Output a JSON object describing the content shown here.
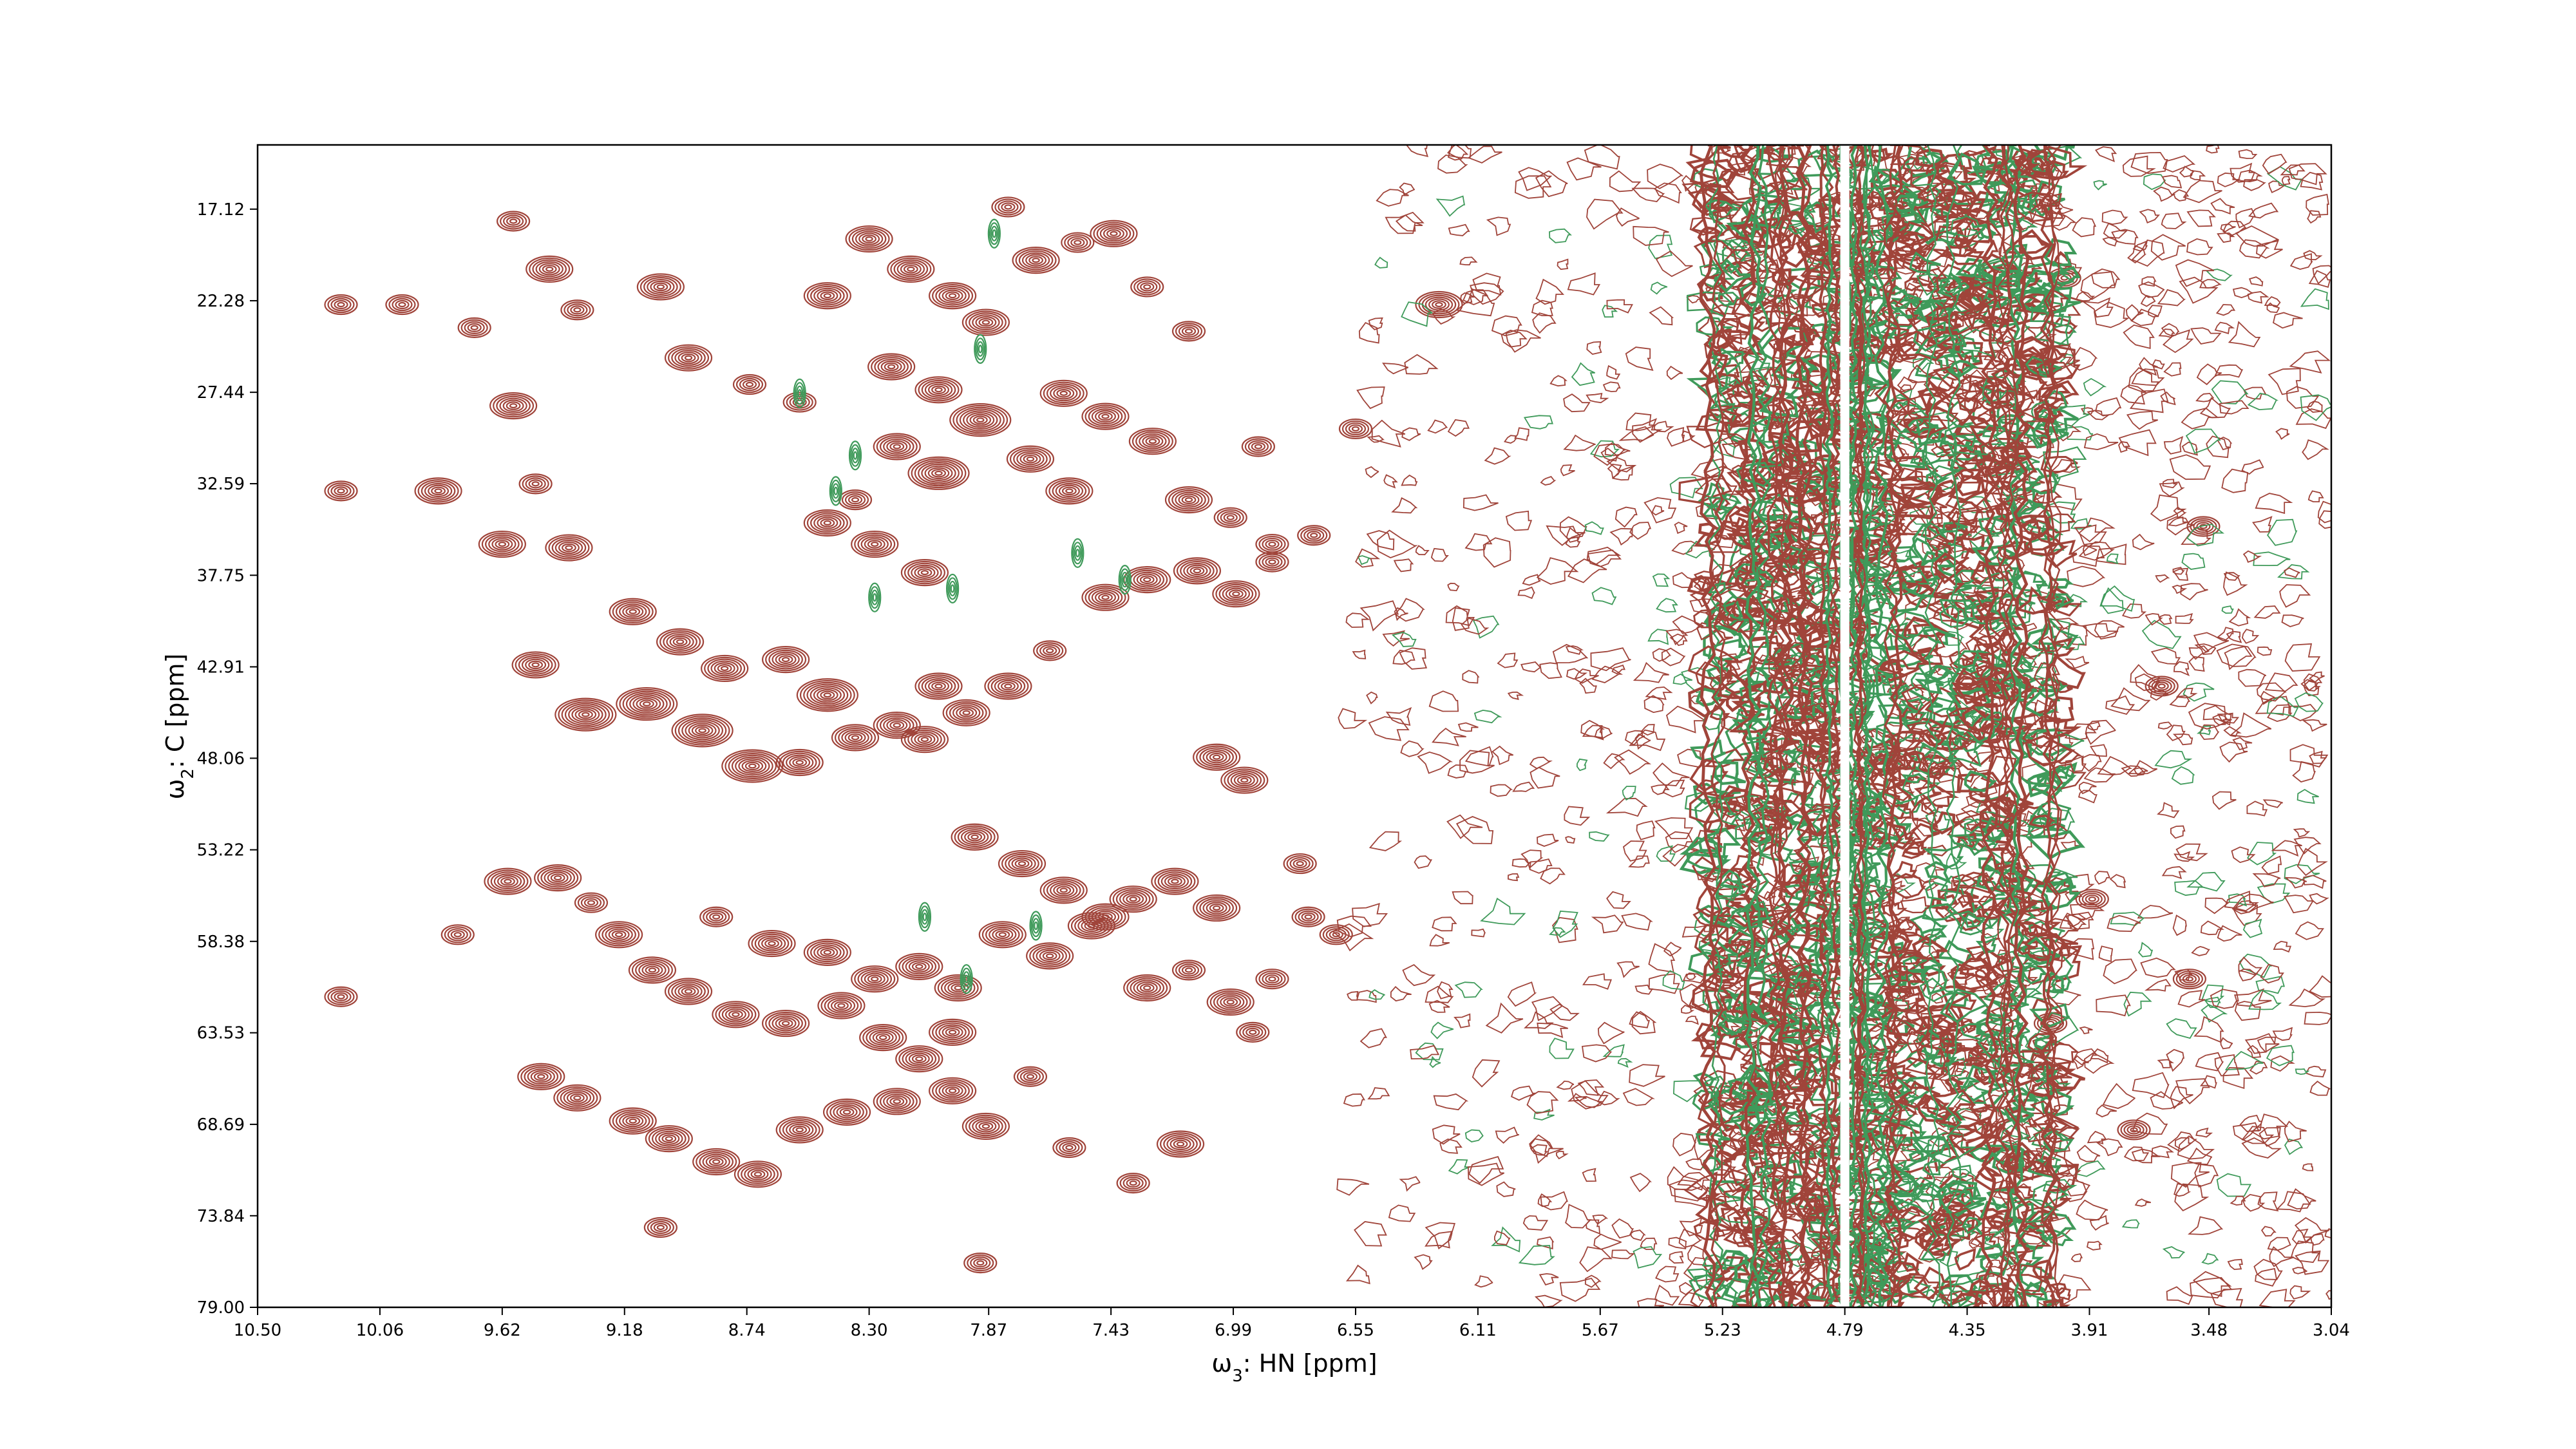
{
  "chart_data": {
    "type": "contour",
    "xlabel_sym": "ω",
    "xlabel_sub": "3",
    "xlabel_rest": ": HN [ppm]",
    "ylabel_sym": "ω",
    "ylabel_sub": "2",
    "ylabel_rest": ": C [ppm]",
    "xlim": [
      10.5,
      3.04
    ],
    "ylim": [
      13.5,
      79.0
    ],
    "x_axis_reversed": true,
    "y_axis_reversed": true,
    "x_ticks": [
      "10.50",
      "10.06",
      "9.62",
      "9.18",
      "8.74",
      "8.30",
      "7.87",
      "7.43",
      "6.99",
      "6.55",
      "6.11",
      "5.67",
      "5.23",
      "4.79",
      "4.35",
      "3.91",
      "3.48",
      "3.04"
    ],
    "y_ticks": [
      "17.12",
      "22.28",
      "27.44",
      "32.59",
      "37.75",
      "42.91",
      "48.06",
      "53.22",
      "58.38",
      "63.53",
      "68.69",
      "73.84",
      "79.00"
    ],
    "positive_color": "#a0443a",
    "negative_color": "#3f9a5a",
    "grid": false,
    "legend": "none",
    "noise_region_ppm": [
      6.6,
      3.04
    ],
    "solvent_band_ppm": [
      5.3,
      4.0
    ],
    "solvent_center_ppm": 4.79,
    "peaks": [
      [
        9.85,
        33.0,
        2
      ],
      [
        9.58,
        17.8,
        1
      ],
      [
        9.45,
        20.5,
        2
      ],
      [
        9.35,
        22.8,
        1
      ],
      [
        9.05,
        21.5,
        2
      ],
      [
        8.95,
        25.5,
        2
      ],
      [
        8.73,
        27.0,
        1
      ],
      [
        8.55,
        28.0,
        1
      ],
      [
        8.45,
        22.0,
        2
      ],
      [
        8.2,
        30.5,
        2
      ],
      [
        8.05,
        32.0,
        3
      ],
      [
        8.35,
        33.5,
        1
      ],
      [
        9.98,
        22.5,
        1
      ],
      [
        9.72,
        23.8,
        1
      ],
      [
        9.58,
        28.2,
        2
      ],
      [
        9.5,
        32.6,
        1
      ],
      [
        9.38,
        36.2,
        2
      ],
      [
        9.15,
        39.8,
        2
      ],
      [
        8.98,
        41.5,
        2
      ],
      [
        8.82,
        43.0,
        2
      ],
      [
        8.6,
        42.5,
        2
      ],
      [
        8.45,
        44.5,
        3
      ],
      [
        8.2,
        46.2,
        2
      ],
      [
        8.05,
        44.0,
        2
      ],
      [
        9.62,
        36.0,
        2
      ],
      [
        9.5,
        42.8,
        2
      ],
      [
        9.32,
        45.6,
        3
      ],
      [
        9.1,
        45.0,
        3
      ],
      [
        8.9,
        46.5,
        3
      ],
      [
        8.72,
        48.5,
        3
      ],
      [
        8.55,
        48.3,
        2
      ],
      [
        8.35,
        46.9,
        2
      ],
      [
        8.1,
        47.0,
        2
      ],
      [
        7.95,
        45.5,
        2
      ],
      [
        7.8,
        44.0,
        2
      ],
      [
        7.65,
        42.0,
        1
      ],
      [
        9.6,
        55.0,
        2
      ],
      [
        9.42,
        54.8,
        2
      ],
      [
        9.3,
        56.2,
        1
      ],
      [
        9.2,
        58.0,
        2
      ],
      [
        9.08,
        60.0,
        2
      ],
      [
        8.95,
        61.2,
        2
      ],
      [
        8.78,
        62.5,
        2
      ],
      [
        8.6,
        63.0,
        2
      ],
      [
        8.4,
        62.0,
        2
      ],
      [
        8.25,
        63.8,
        2
      ],
      [
        8.12,
        65.0,
        2
      ],
      [
        8.0,
        63.5,
        2
      ],
      [
        9.48,
        66.0,
        2
      ],
      [
        9.35,
        67.2,
        2
      ],
      [
        9.15,
        68.5,
        2
      ],
      [
        9.02,
        69.5,
        2
      ],
      [
        8.85,
        70.8,
        2
      ],
      [
        8.7,
        71.5,
        2
      ],
      [
        8.55,
        69.0,
        2
      ],
      [
        8.38,
        68.0,
        2
      ],
      [
        8.2,
        67.4,
        2
      ],
      [
        8.0,
        66.8,
        2
      ],
      [
        7.88,
        68.8,
        2
      ],
      [
        7.72,
        66.0,
        1
      ],
      [
        8.85,
        57.0,
        1
      ],
      [
        8.65,
        58.5,
        2
      ],
      [
        8.45,
        59.0,
        2
      ],
      [
        8.28,
        60.5,
        2
      ],
      [
        8.12,
        59.8,
        2
      ],
      [
        7.98,
        61.0,
        2
      ],
      [
        7.82,
        58.0,
        2
      ],
      [
        7.65,
        59.2,
        2
      ],
      [
        7.5,
        57.5,
        2
      ],
      [
        7.35,
        56.0,
        2
      ],
      [
        7.2,
        55.0,
        2
      ],
      [
        7.05,
        56.5,
        2
      ],
      [
        7.92,
        52.5,
        2
      ],
      [
        7.75,
        54.0,
        2
      ],
      [
        7.6,
        55.5,
        2
      ],
      [
        7.45,
        57.0,
        2
      ],
      [
        7.3,
        61.0,
        2
      ],
      [
        7.15,
        60.0,
        1
      ],
      [
        7.0,
        61.8,
        2
      ],
      [
        6.85,
        60.5,
        1
      ],
      [
        6.72,
        57.0,
        1
      ],
      [
        6.62,
        58.0,
        1
      ],
      [
        7.45,
        39.0,
        2
      ],
      [
        7.3,
        38.0,
        2
      ],
      [
        7.12,
        37.5,
        2
      ],
      [
        6.98,
        38.8,
        2
      ],
      [
        6.85,
        37.0,
        1
      ],
      [
        6.7,
        35.5,
        1
      ],
      [
        7.05,
        48.0,
        2
      ],
      [
        6.95,
        49.3,
        2
      ],
      [
        6.55,
        29.5,
        1
      ],
      [
        6.25,
        22.5,
        2
      ],
      [
        7.8,
        17.0,
        1
      ],
      [
        7.7,
        20.0,
        2
      ],
      [
        7.55,
        19.0,
        1
      ],
      [
        7.42,
        18.5,
        2
      ],
      [
        7.3,
        21.5,
        1
      ],
      [
        7.15,
        24.0,
        1
      ],
      [
        7.6,
        27.5,
        2
      ],
      [
        7.45,
        28.8,
        2
      ],
      [
        7.28,
        30.2,
        2
      ],
      [
        7.15,
        33.5,
        2
      ],
      [
        7.0,
        34.5,
        1
      ],
      [
        6.85,
        36.0,
        1
      ],
      [
        8.3,
        18.8,
        2
      ],
      [
        8.15,
        20.5,
        2
      ],
      [
        8.0,
        22.0,
        2
      ],
      [
        7.88,
        23.5,
        2
      ],
      [
        8.22,
        26.0,
        2
      ],
      [
        8.05,
        27.3,
        2
      ],
      [
        7.9,
        29.0,
        3
      ],
      [
        7.72,
        31.2,
        2
      ],
      [
        7.58,
        33.0,
        2
      ],
      [
        8.45,
        34.8,
        2
      ],
      [
        8.28,
        36.0,
        2
      ],
      [
        8.1,
        37.6,
        2
      ],
      [
        10.2,
        22.5,
        1
      ],
      [
        10.2,
        33.0,
        1
      ],
      [
        10.2,
        61.5,
        1
      ],
      [
        9.78,
        58.0,
        1
      ],
      [
        9.05,
        74.5,
        1
      ],
      [
        7.9,
        76.5,
        1
      ],
      [
        7.58,
        70.0,
        1
      ],
      [
        7.35,
        72.0,
        1
      ],
      [
        7.18,
        69.8,
        2
      ],
      [
        6.92,
        63.5,
        1
      ],
      [
        6.75,
        54.0,
        1
      ],
      [
        6.9,
        30.5,
        1
      ],
      [
        3.5,
        35.0,
        1
      ],
      [
        3.55,
        60.5,
        1
      ],
      [
        3.65,
        44.0,
        1
      ],
      [
        4.0,
        21.0,
        1
      ],
      [
        3.9,
        56.0,
        1
      ],
      [
        3.75,
        69.0,
        1
      ],
      [
        4.05,
        63.0,
        1
      ]
    ],
    "negative_peaks": [
      [
        7.85,
        18.5
      ],
      [
        7.9,
        25.0
      ],
      [
        8.35,
        31.0
      ],
      [
        8.28,
        39.0
      ],
      [
        8.0,
        38.5
      ],
      [
        7.55,
        36.5
      ],
      [
        7.38,
        38.0
      ],
      [
        8.1,
        57.0
      ],
      [
        7.95,
        60.5
      ],
      [
        8.55,
        27.5
      ],
      [
        8.42,
        33.0
      ],
      [
        7.7,
        57.5
      ]
    ]
  }
}
